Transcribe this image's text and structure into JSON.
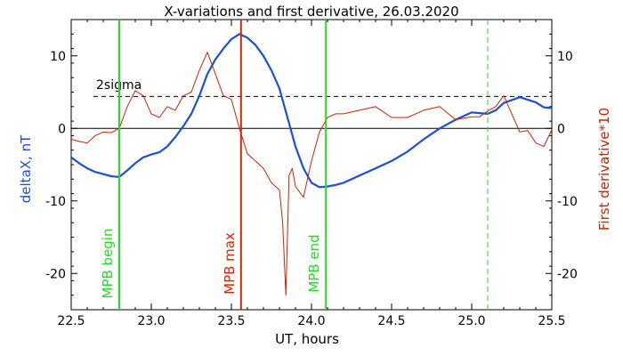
{
  "chart_data": {
    "type": "line",
    "title": "X-variations and first derivative, 26.03.2020",
    "xlabel": "UT, hours",
    "ylabel_left": "deltaX, nT",
    "ylabel_right": "First derivative*10",
    "xlim": [
      22.5,
      25.5
    ],
    "ylim": [
      -25,
      15
    ],
    "x_ticks": [
      "22.5",
      "23.0",
      "23.5",
      "24.0",
      "24.5",
      "25.0",
      "25.5"
    ],
    "y_ticks_left": [
      "10",
      "0",
      "-10",
      "-20"
    ],
    "y_ticks_right": [
      "10",
      "0",
      "-10",
      "-20"
    ],
    "colors": {
      "series_deltaX": "#1a4fdc",
      "series_derivative": "#cc2200",
      "mpb_begin": "#22dd22",
      "mpb_max": "#dd2200",
      "mpb_end": "#22dd22",
      "axis": "#000000"
    },
    "sigma_label": "2sigma",
    "sigma_level": 4.4,
    "zero_level": 0,
    "markers": [
      {
        "x": 22.8,
        "label": "MPB begin",
        "color_key": "mpb_begin",
        "style": "solid"
      },
      {
        "x": 23.56,
        "label": "MPB max",
        "color_key": "mpb_max",
        "style": "solid"
      },
      {
        "x": 24.09,
        "label": "MPB end",
        "color_key": "mpb_end",
        "style": "solid"
      },
      {
        "x": 25.1,
        "label": "",
        "color_key": "mpb_begin",
        "style": "dashed"
      }
    ],
    "series": [
      {
        "color_key": "series_deltaX",
        "x": [
          22.5,
          22.55,
          22.6,
          22.65,
          22.7,
          22.75,
          22.8,
          22.85,
          22.9,
          22.95,
          23.0,
          23.05,
          23.1,
          23.15,
          23.2,
          23.25,
          23.3,
          23.35,
          23.4,
          23.45,
          23.5,
          23.55,
          23.6,
          23.65,
          23.7,
          23.75,
          23.8,
          23.85,
          23.9,
          23.95,
          24.0,
          24.05,
          24.1,
          24.15,
          24.2,
          24.3,
          24.4,
          24.5,
          24.6,
          24.7,
          24.8,
          24.9,
          25.0,
          25.05,
          25.1,
          25.15,
          25.2,
          25.3,
          25.4,
          25.45,
          25.5
        ],
        "values": [
          -4.0,
          -4.8,
          -5.5,
          -6.0,
          -6.3,
          -6.6,
          -6.7,
          -5.8,
          -4.8,
          -4.0,
          -3.6,
          -3.3,
          -2.5,
          -1.2,
          0.3,
          2.0,
          4.5,
          7.5,
          9.5,
          11.0,
          12.3,
          13.0,
          12.5,
          11.5,
          10.0,
          8.0,
          5.5,
          1.5,
          -2.5,
          -5.5,
          -7.5,
          -8.1,
          -8.0,
          -7.8,
          -7.5,
          -6.5,
          -5.5,
          -4.5,
          -3.2,
          -1.5,
          0,
          1.2,
          2.2,
          2.1,
          2.0,
          2.5,
          3.5,
          4.3,
          3.6,
          2.9,
          2.8
        ]
      },
      {
        "color_key": "series_derivative",
        "x": [
          22.5,
          22.55,
          22.6,
          22.65,
          22.7,
          22.75,
          22.8,
          22.85,
          22.9,
          22.95,
          23.0,
          23.05,
          23.1,
          23.15,
          23.2,
          23.25,
          23.3,
          23.35,
          23.4,
          23.45,
          23.5,
          23.55,
          23.6,
          23.65,
          23.7,
          23.75,
          23.8,
          23.82,
          23.84,
          23.86,
          23.88,
          23.9,
          23.95,
          24.0,
          24.05,
          24.1,
          24.15,
          24.2,
          24.3,
          24.4,
          24.5,
          24.6,
          24.7,
          24.8,
          24.9,
          25.0,
          25.05,
          25.1,
          25.15,
          25.2,
          25.25,
          25.3,
          25.35,
          25.4,
          25.45,
          25.5
        ],
        "values": [
          -1.5,
          -1.8,
          -2.0,
          -1.0,
          -0.5,
          -0.6,
          0,
          3.0,
          5.2,
          4.5,
          2.0,
          1.5,
          3.0,
          2.5,
          4.5,
          5.0,
          8.0,
          10.5,
          7.5,
          4.5,
          4.0,
          0,
          -3.5,
          -4.5,
          -5.5,
          -7.5,
          -8.5,
          -13.0,
          -23.0,
          -6.5,
          -5.5,
          -8.0,
          -9.5,
          -4.5,
          -0.5,
          1.5,
          2.0,
          2.0,
          2.5,
          3.0,
          1.5,
          1.5,
          2.5,
          3.0,
          1.2,
          1.6,
          1.6,
          2.4,
          3.0,
          4.5,
          2.0,
          -0.5,
          -0.3,
          -2.0,
          -2.5,
          -0.2
        ]
      }
    ]
  }
}
